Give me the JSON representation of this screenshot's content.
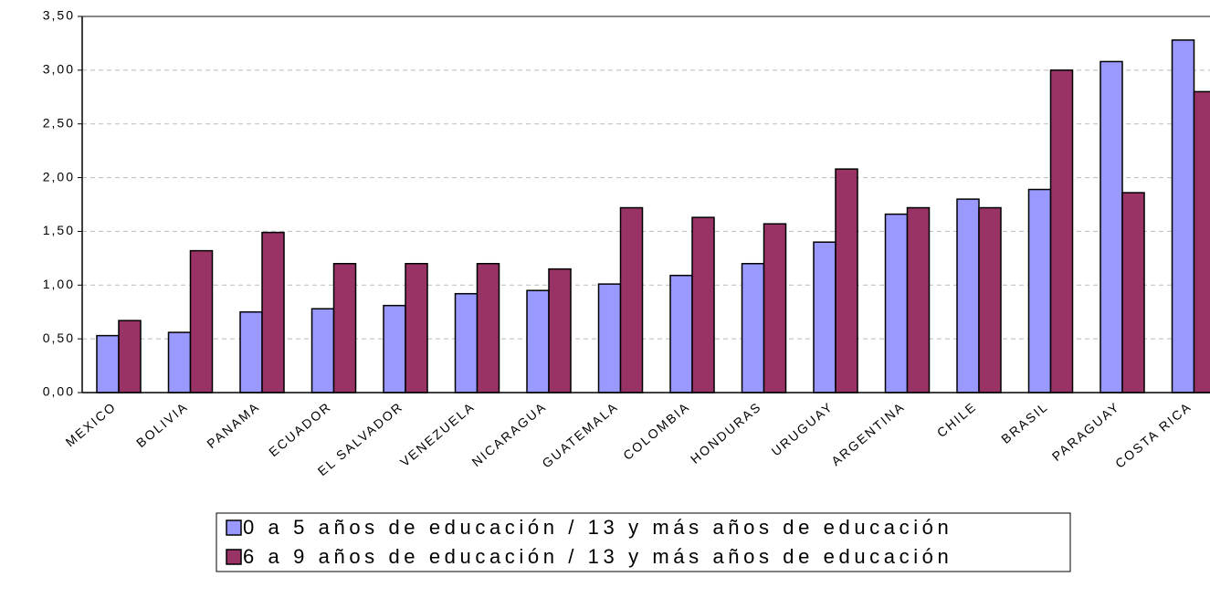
{
  "chart_data": {
    "type": "bar",
    "categories": [
      "MEXICO",
      "BOLIVIA",
      "PANAMA",
      "ECUADOR",
      "EL SALVADOR",
      "VENEZUELA",
      "NICARAGUA",
      "GUATEMALA",
      "COLOMBIA",
      "HONDURAS",
      "URUGUAY",
      "ARGENTINA",
      "CHILE",
      "BRASIL",
      "PARAGUAY",
      "COSTA RICA"
    ],
    "series": [
      {
        "name": "0 a 5 años de educación / 13 y más años de educación",
        "color": "#9999ff",
        "values": [
          0.53,
          0.56,
          0.75,
          0.78,
          0.81,
          0.92,
          0.95,
          1.01,
          1.09,
          1.2,
          1.4,
          1.66,
          1.8,
          1.89,
          3.08,
          3.28
        ]
      },
      {
        "name": "6 a 9 años de educación / 13 y más años de educación",
        "color": "#993366",
        "values": [
          0.67,
          1.32,
          1.49,
          1.2,
          1.2,
          1.2,
          1.15,
          1.72,
          1.63,
          1.57,
          2.08,
          1.72,
          1.72,
          3.0,
          1.86,
          2.8
        ]
      }
    ],
    "ylim": [
      0,
      3.5
    ],
    "yticks": [
      {
        "value": 0,
        "label": "0,00"
      },
      {
        "value": 0.5,
        "label": "0,50"
      },
      {
        "value": 1,
        "label": "1,00"
      },
      {
        "value": 1.5,
        "label": "1,50"
      },
      {
        "value": 2,
        "label": "2,00"
      },
      {
        "value": 2.5,
        "label": "2,50"
      },
      {
        "value": 3,
        "label": "3,00"
      },
      {
        "value": 3.5,
        "label": "3,50"
      }
    ],
    "grid": true,
    "legend": "bottom"
  }
}
